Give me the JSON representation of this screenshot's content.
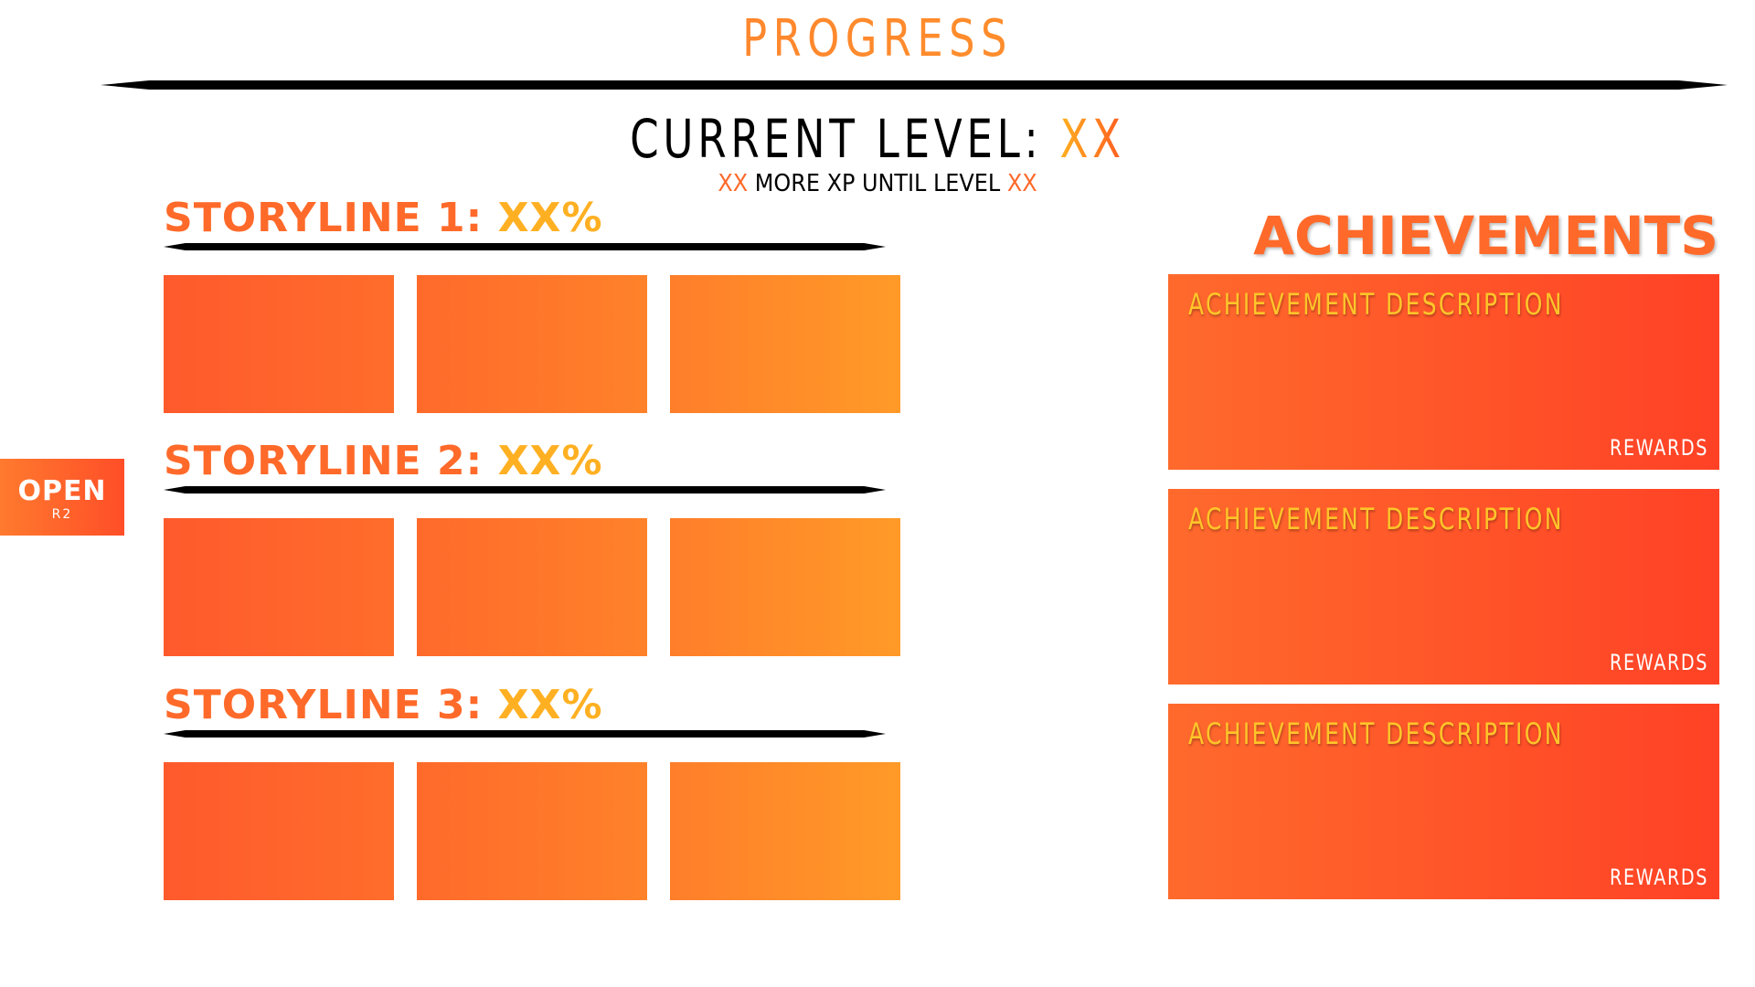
{
  "header": {
    "title": "PROGRESS",
    "level_label": "CURRENT LEVEL: ",
    "level_value": "XX",
    "xp_prefix": "XX",
    "xp_text": " MORE XP UNTIL LEVEL ",
    "xp_suffix": "XX"
  },
  "storylines": [
    {
      "label": "STORYLINE 1: ",
      "percent": "XX%"
    },
    {
      "label": "STORYLINE 2: ",
      "percent": "XX%"
    },
    {
      "label": "STORYLINE 3: ",
      "percent": "XX%"
    }
  ],
  "open_tab": {
    "label": "OPEN",
    "button_hint": "R2"
  },
  "achievements": {
    "title": "ACHIEVEMENTS",
    "items": [
      {
        "description": "ACHIEVEMENT DESCRIPTION",
        "rewards": "REWARDS"
      },
      {
        "description": "ACHIEVEMENT DESCRIPTION",
        "rewards": "REWARDS"
      },
      {
        "description": "ACHIEVEMENT DESCRIPTION",
        "rewards": "REWARDS"
      }
    ]
  },
  "colors": {
    "accent_orange": "#ff6a2a",
    "accent_yellow": "#ffb022",
    "achievement_red": "#ff4226"
  }
}
